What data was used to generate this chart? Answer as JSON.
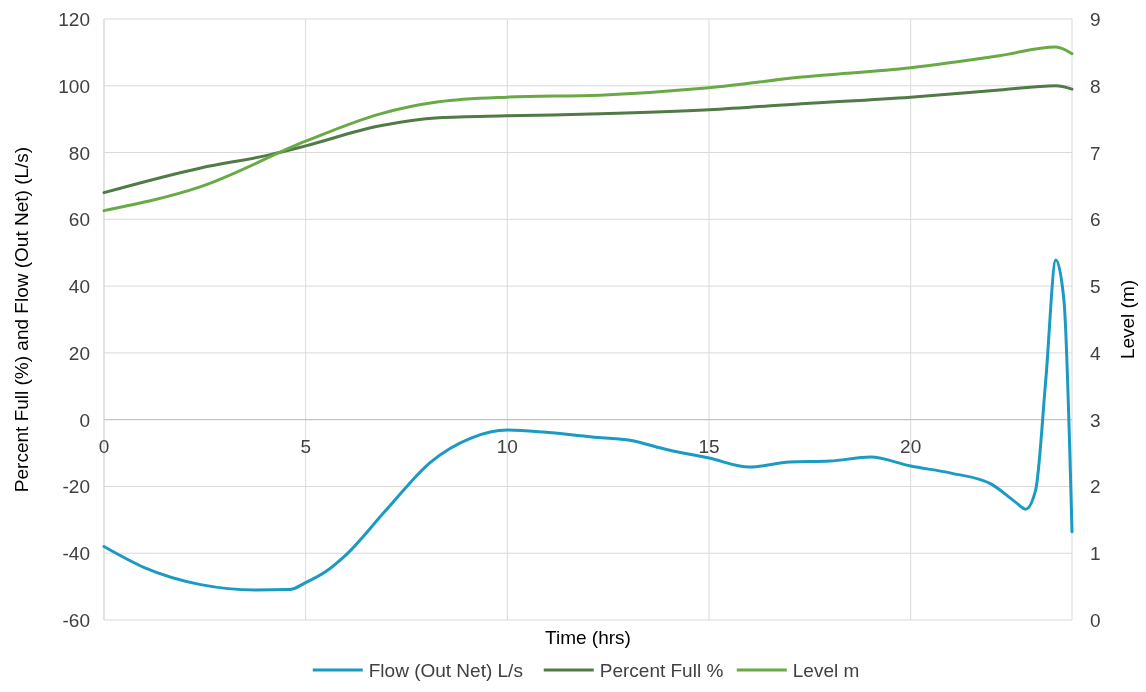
{
  "chart_data": {
    "type": "line",
    "xlabel": "Time (hrs)",
    "ylabel": "Percent Full (%) and Flow (Out Net) (L/s)",
    "y2label": "Level (m)",
    "xlim": [
      0,
      24
    ],
    "xticks": [
      0,
      5,
      10,
      15,
      20
    ],
    "ylim": [
      -60,
      120
    ],
    "yticks": [
      -60,
      -40,
      -20,
      0,
      20,
      40,
      60,
      80,
      100,
      120
    ],
    "y2lim": [
      0,
      9
    ],
    "y2ticks": [
      0,
      1,
      2,
      3,
      4,
      5,
      6,
      7,
      8,
      9
    ],
    "grid": true,
    "legend": "bottom",
    "marker": "none",
    "line_style": "solid",
    "series": [
      {
        "name": "Flow (Out Net) L/s",
        "color": "#1b9ac2",
        "x": [
          0,
          1,
          2.4,
          3.75,
          4.6,
          5,
          5.5,
          6,
          7,
          8.1,
          9.1,
          10,
          10.9,
          12.1,
          13,
          14,
          15,
          16,
          17,
          18,
          19,
          20,
          21,
          22,
          22.6,
          22.85,
          23.1,
          23.35,
          23.6,
          23.8,
          24
        ],
        "values": [
          -38,
          -44.3,
          -49.4,
          -51,
          -50.9,
          -48.8,
          -45.5,
          -40.5,
          -27,
          -12.7,
          -5.5,
          -3.1,
          -3.7,
          -5.2,
          -6.1,
          -9.1,
          -11.5,
          -14.2,
          -12.7,
          -12.4,
          -11.2,
          -13.9,
          -16,
          -19.3,
          -24.7,
          -26.8,
          -21,
          11.9,
          47.8,
          35.8,
          -33.6
        ]
      },
      {
        "name": "Percent Full %",
        "color": "#507a46",
        "x": [
          0,
          2.4,
          4.1,
          5,
          6.85,
          8.3,
          10,
          12.3,
          15,
          17.3,
          20,
          22.2,
          23.6,
          24
        ],
        "values": [
          68,
          75.4,
          79.3,
          82,
          88,
          90.4,
          91,
          91.6,
          92.8,
          94.6,
          96.6,
          98.7,
          100,
          99
        ]
      },
      {
        "name": "Level m",
        "color": "#6aaa46",
        "axis": "y2",
        "x": [
          0,
          2.4,
          5,
          6.85,
          8.3,
          10,
          12.3,
          15,
          17.3,
          20,
          22.2,
          23.6,
          24
        ],
        "values": [
          6.13,
          6.49,
          7.17,
          7.58,
          7.76,
          7.83,
          7.86,
          7.97,
          8.13,
          8.27,
          8.45,
          8.58,
          8.48
        ]
      }
    ]
  }
}
